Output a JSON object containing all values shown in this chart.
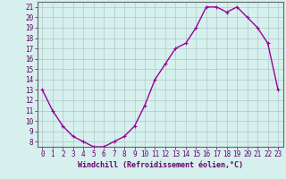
{
  "x": [
    0,
    1,
    2,
    3,
    4,
    5,
    6,
    7,
    8,
    9,
    10,
    11,
    12,
    13,
    14,
    15,
    16,
    17,
    18,
    19,
    20,
    21,
    22,
    23
  ],
  "y": [
    13,
    11,
    9.5,
    8.5,
    8.0,
    7.5,
    7.5,
    8.0,
    8.5,
    9.5,
    11.5,
    14.0,
    15.5,
    17.0,
    17.5,
    19.0,
    21.0,
    21.0,
    20.5,
    21.0,
    20.0,
    19.0,
    17.5,
    13.0
  ],
  "line_color": "#990099",
  "marker": "+",
  "marker_size": 3,
  "line_width": 1.0,
  "xlabel": "Windchill (Refroidissement éolien,°C)",
  "xlabel_fontsize": 6,
  "ylim": [
    7.5,
    21.5
  ],
  "xlim": [
    -0.5,
    23.5
  ],
  "yticks": [
    8,
    9,
    10,
    11,
    12,
    13,
    14,
    15,
    16,
    17,
    18,
    19,
    20,
    21
  ],
  "xticks": [
    0,
    1,
    2,
    3,
    4,
    5,
    6,
    7,
    8,
    9,
    10,
    11,
    12,
    13,
    14,
    15,
    16,
    17,
    18,
    19,
    20,
    21,
    22,
    23
  ],
  "tick_fontsize": 5.5,
  "bg_color": "#d6f0ee",
  "grid_color": "#b0c8c8",
  "axis_color": "#660066",
  "spine_color": "#666666"
}
